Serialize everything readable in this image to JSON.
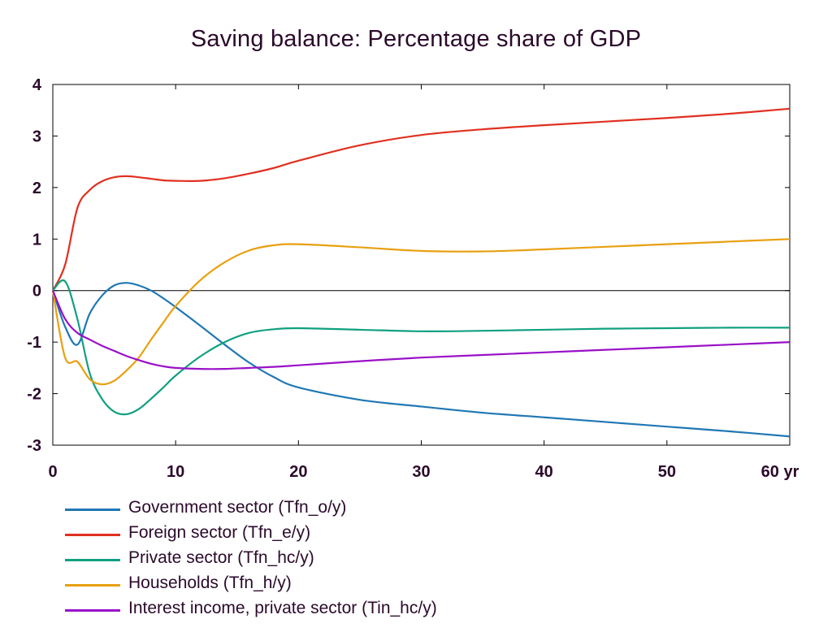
{
  "chart_data": {
    "type": "line",
    "title": "Saving balance: Percentage share of GDP",
    "xlabel": "",
    "ylabel": "",
    "xlim": [
      0,
      60
    ],
    "ylim": [
      -3,
      4
    ],
    "x_ticks": [
      0,
      10,
      20,
      30,
      40,
      50,
      60
    ],
    "x_tick_labels": [
      "0",
      "10",
      "20",
      "30",
      "40",
      "50",
      "60 yr"
    ],
    "y_ticks": [
      -3,
      -2,
      -1,
      0,
      1,
      2,
      3,
      4
    ],
    "y_tick_labels": [
      "-3",
      "-2",
      "-1",
      "0",
      "1",
      "2",
      "3",
      "4"
    ],
    "zero_line": true,
    "grid": false,
    "legend_position": "bottom",
    "x": [
      0,
      1,
      2,
      3,
      4,
      5,
      6,
      7,
      8,
      9,
      10,
      12,
      14,
      16,
      18,
      20,
      25,
      30,
      35,
      40,
      45,
      50,
      55,
      60
    ],
    "series": [
      {
        "name": "Government sector (Tfn_o/y)",
        "color": "#1f77b4",
        "values": [
          0,
          -0.7,
          -1.05,
          -0.45,
          -0.1,
          0.1,
          0.15,
          0.1,
          0.0,
          -0.15,
          -0.32,
          -0.68,
          -1.05,
          -1.4,
          -1.68,
          -1.88,
          -2.12,
          -2.25,
          -2.37,
          -2.46,
          -2.55,
          -2.64,
          -2.73,
          -2.83
        ]
      },
      {
        "name": "Foreign sector (Tfn_e/y)",
        "color": "#e03020",
        "values": [
          0,
          0.5,
          1.6,
          1.95,
          2.12,
          2.2,
          2.22,
          2.2,
          2.17,
          2.14,
          2.13,
          2.13,
          2.18,
          2.27,
          2.38,
          2.52,
          2.82,
          3.02,
          3.13,
          3.21,
          3.28,
          3.35,
          3.43,
          3.53
        ]
      },
      {
        "name": "Private sector (Tfn_hc/y)",
        "color": "#10a080",
        "values": [
          0,
          0.18,
          -0.55,
          -1.6,
          -2.1,
          -2.35,
          -2.4,
          -2.3,
          -2.1,
          -1.88,
          -1.65,
          -1.28,
          -1.0,
          -0.82,
          -0.75,
          -0.73,
          -0.76,
          -0.79,
          -0.78,
          -0.76,
          -0.74,
          -0.73,
          -0.72,
          -0.72
        ]
      },
      {
        "name": "Households (Tfn_h/y)",
        "color": "#e8a010",
        "values": [
          0,
          -1.3,
          -1.38,
          -1.72,
          -1.82,
          -1.75,
          -1.55,
          -1.3,
          -0.95,
          -0.62,
          -0.3,
          0.2,
          0.55,
          0.78,
          0.88,
          0.9,
          0.84,
          0.77,
          0.76,
          0.8,
          0.85,
          0.9,
          0.95,
          1.0
        ]
      },
      {
        "name": "Interest income, private sector (Tin_hc/y)",
        "color": "#9a10c8",
        "values": [
          0,
          -0.55,
          -0.82,
          -0.95,
          -1.07,
          -1.17,
          -1.27,
          -1.35,
          -1.42,
          -1.47,
          -1.5,
          -1.52,
          -1.52,
          -1.5,
          -1.48,
          -1.45,
          -1.37,
          -1.3,
          -1.25,
          -1.2,
          -1.15,
          -1.1,
          -1.05,
          -1.0
        ]
      }
    ]
  }
}
